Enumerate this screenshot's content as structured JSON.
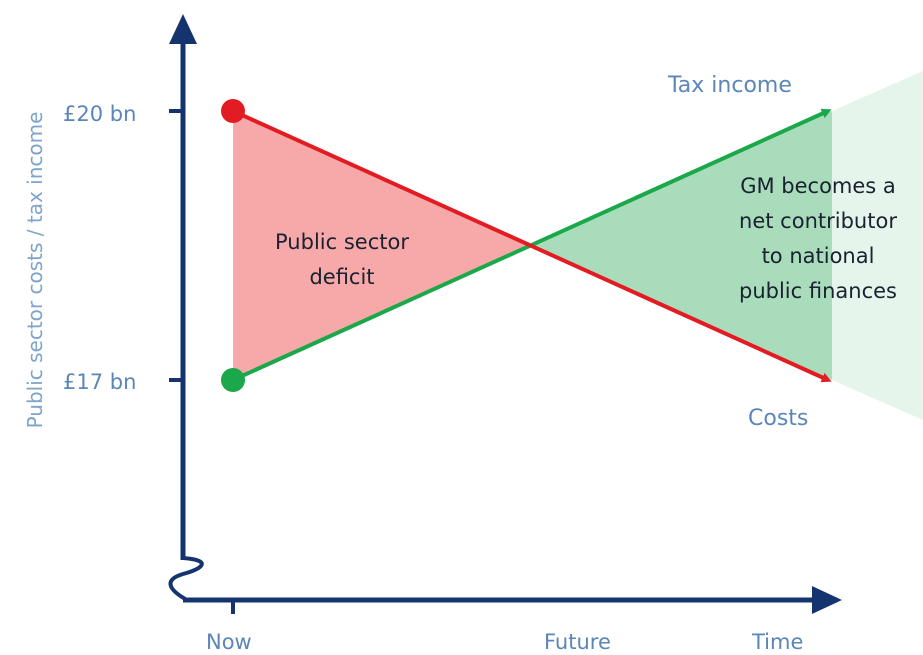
{
  "chart_data": {
    "type": "line",
    "title": "",
    "ylabel": "Public sector costs / tax income",
    "xlabel": "Time",
    "x_tick_labels": [
      "Now",
      "Future"
    ],
    "y_tick_labels": [
      "£20 bn",
      "£17 bn"
    ],
    "series": [
      {
        "name": "Tax income",
        "start": 17,
        "end": 20,
        "color": "#1aa84a"
      },
      {
        "name": "Costs",
        "start": 20,
        "end": 17,
        "color": "#e31b23"
      }
    ],
    "regions": {
      "deficit": {
        "line1": "Public sector",
        "line2": "deficit",
        "color": "#f7a8a8"
      },
      "surplus": {
        "line1": "GM becomes a",
        "line2": "net contributor",
        "line3": "to national",
        "line4": "public finances",
        "color": "#a9dcbb"
      }
    },
    "axis_color": "#15336e"
  }
}
